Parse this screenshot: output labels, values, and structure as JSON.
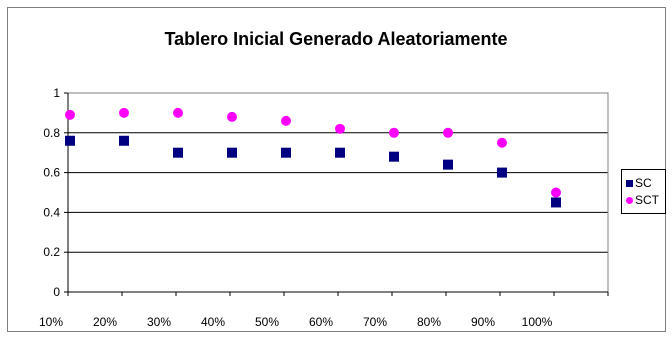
{
  "chart_data": {
    "type": "scatter",
    "title": "Tablero Inicial Generado Aleatoriamente",
    "categories": [
      "10%",
      "20%",
      "30%",
      "40%",
      "50%",
      "60%",
      "70%",
      "80%",
      "90%",
      "100%"
    ],
    "y_ticks": [
      "0",
      "0.2",
      "0.4",
      "0.6",
      "0.8",
      "1"
    ],
    "ylim": [
      0,
      1
    ],
    "grid": true,
    "legend_position": "right",
    "series": [
      {
        "name": "SC",
        "marker": "square",
        "color": "#000080",
        "values": [
          0.76,
          0.76,
          0.7,
          0.7,
          0.7,
          0.7,
          0.68,
          0.64,
          0.6,
          0.45
        ]
      },
      {
        "name": "SCT",
        "marker": "circle",
        "color": "#ff00ff",
        "values": [
          0.89,
          0.9,
          0.9,
          0.88,
          0.86,
          0.82,
          0.8,
          0.8,
          0.75,
          0.5
        ]
      }
    ]
  }
}
